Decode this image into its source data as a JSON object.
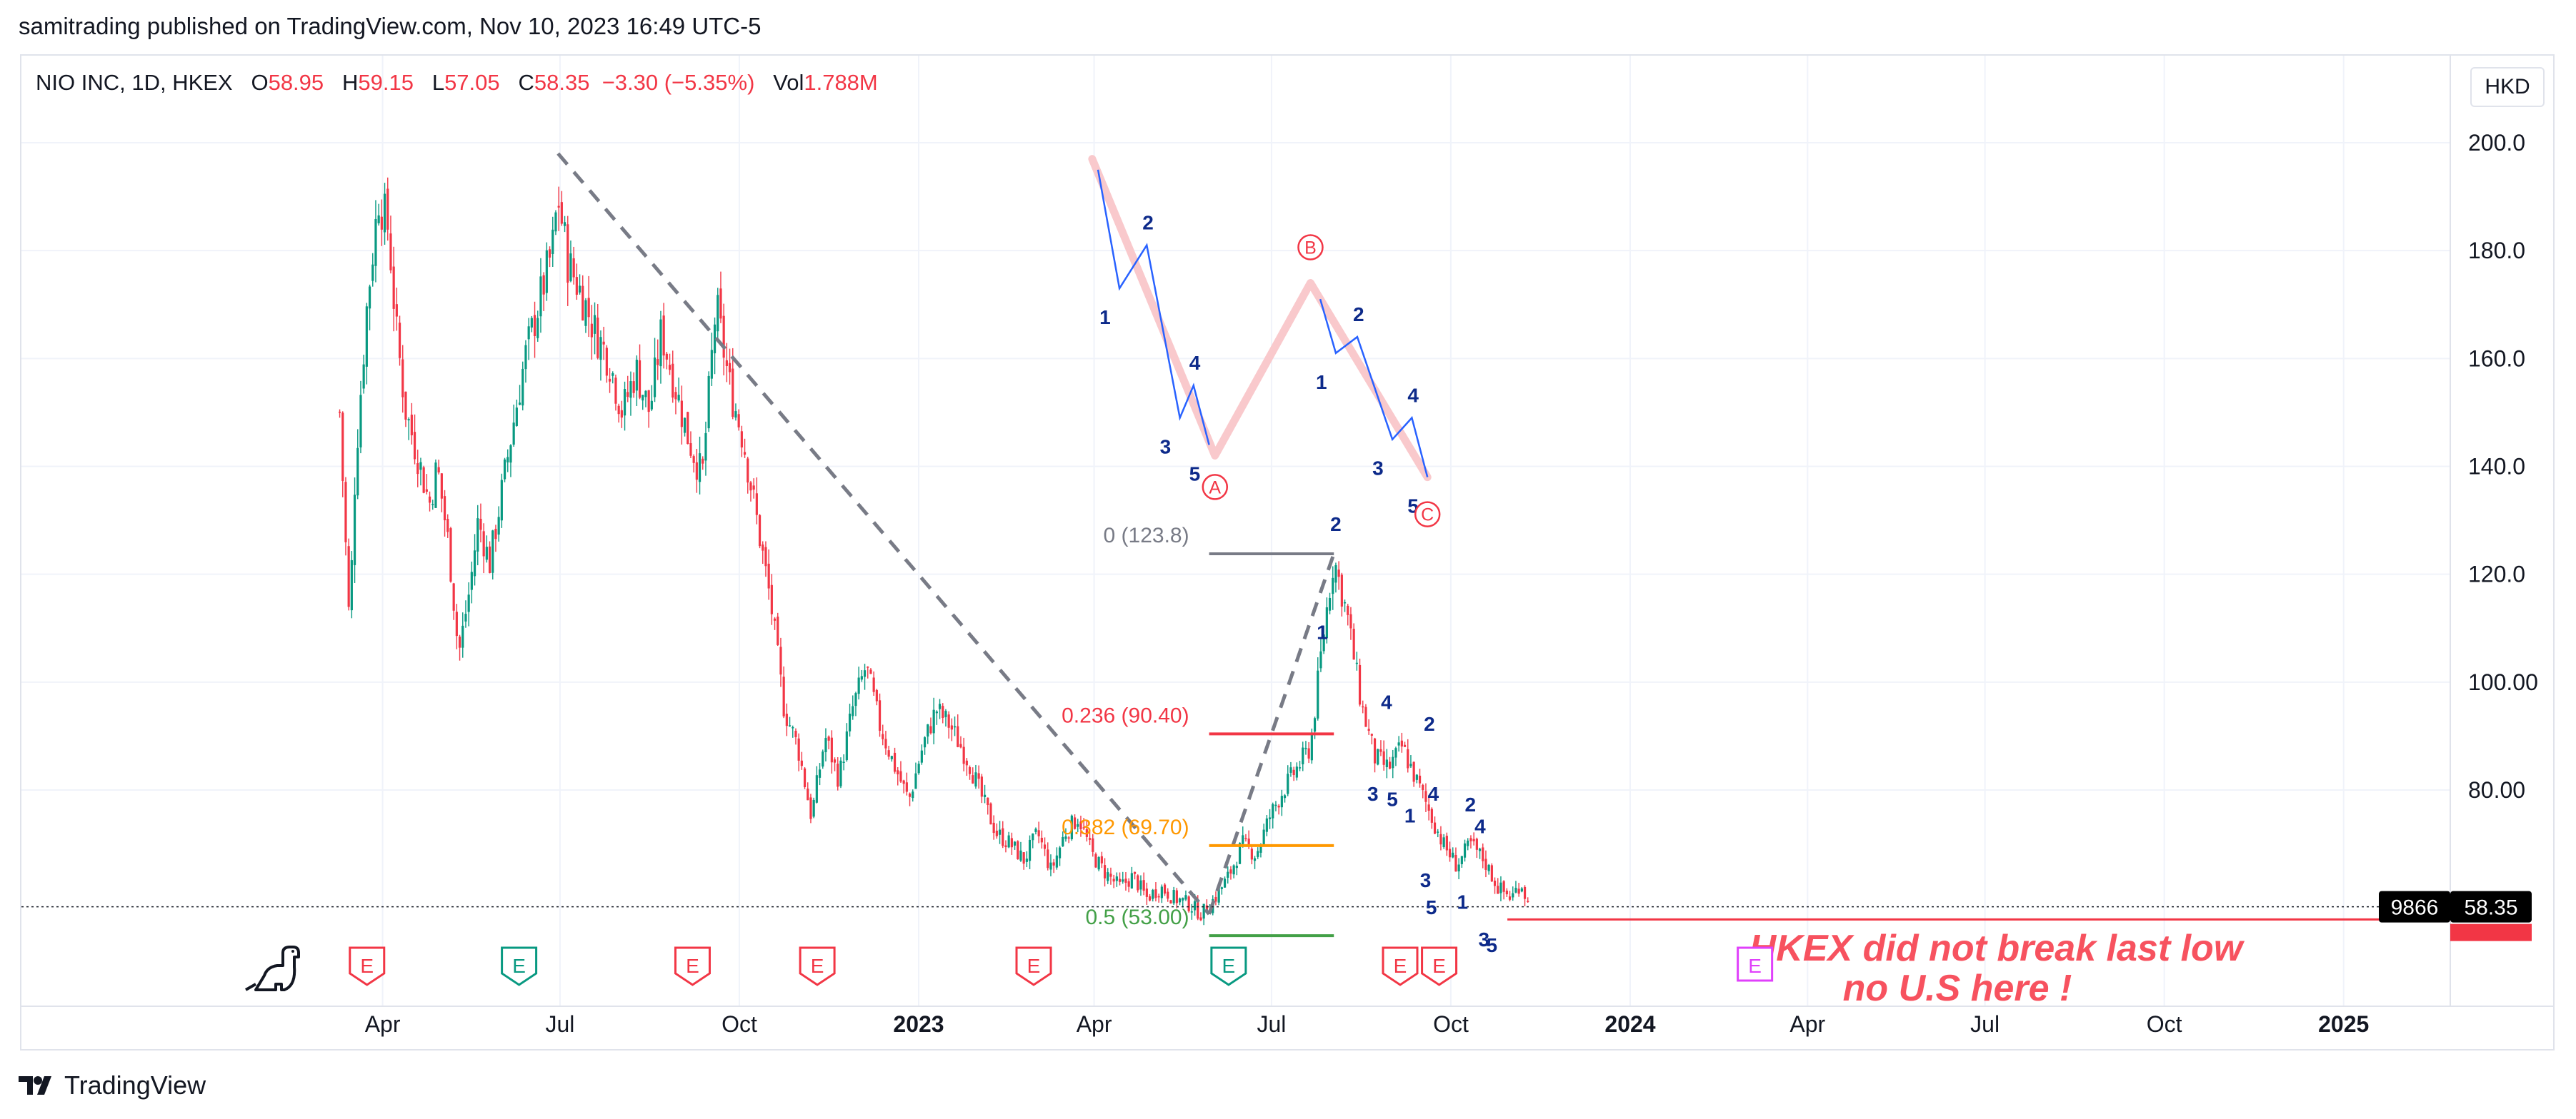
{
  "publish_line": "samitrading published on TradingView.com, Nov 10, 2023 16:49 UTC-5",
  "legend": {
    "symbol": "NIO INC, 1D, HKEX",
    "o_label": "O",
    "o_value": "58.95",
    "h_label": "H",
    "h_value": "59.15",
    "l_label": "L",
    "l_value": "57.05",
    "c_label": "C",
    "c_value": "58.35",
    "change": "−3.30 (−5.35%)",
    "vol_label": "Vol",
    "vol_value": "1.788M"
  },
  "currency": "HKD",
  "footer": {
    "brand": "TradingView"
  },
  "colors": {
    "up": "#089981",
    "down": "#f23645",
    "wave": "#2962ff",
    "wave_label": "#0d2a8a",
    "abc": "#f9c9cc",
    "trendline": "#787b86",
    "annotation": "#f7525f",
    "earnings_pink": "#e040fb"
  },
  "chart_data": {
    "type": "candlestick",
    "ylim": [
      42,
      215
    ],
    "y_ticks": [
      "200.0",
      "180.0",
      "160.0",
      "140.0",
      "120.0",
      "100.00",
      "80.00"
    ],
    "x_ticks": [
      "Apr",
      "Jul",
      "Oct",
      "2023",
      "Apr",
      "Jul",
      "Oct",
      "2024",
      "Apr",
      "Jul",
      "Oct",
      "2025"
    ],
    "last_price": "58.35",
    "price_tag_left": "9866",
    "price_path": [
      [
        "2022-03-10",
        150
      ],
      [
        "2022-03-15",
        110
      ],
      [
        "2022-03-18",
        140
      ],
      [
        "2022-03-24",
        170
      ],
      [
        "2022-03-30",
        190
      ],
      [
        "2022-04-04",
        184
      ],
      [
        "2022-04-08",
        165
      ],
      [
        "2022-04-13",
        150
      ],
      [
        "2022-04-19",
        142
      ],
      [
        "2022-04-25",
        133
      ],
      [
        "2022-04-29",
        140
      ],
      [
        "2022-05-05",
        125
      ],
      [
        "2022-05-10",
        105
      ],
      [
        "2022-05-16",
        118
      ],
      [
        "2022-05-20",
        130
      ],
      [
        "2022-05-26",
        122
      ],
      [
        "2022-06-01",
        135
      ],
      [
        "2022-06-08",
        150
      ],
      [
        "2022-06-13",
        160
      ],
      [
        "2022-06-20",
        170
      ],
      [
        "2022-06-27",
        180
      ],
      [
        "2022-06-30",
        190
      ],
      [
        "2022-07-05",
        178
      ],
      [
        "2022-07-12",
        172
      ],
      [
        "2022-07-19",
        165
      ],
      [
        "2022-07-26",
        160
      ],
      [
        "2022-08-02",
        150
      ],
      [
        "2022-08-09",
        158
      ],
      [
        "2022-08-16",
        150
      ],
      [
        "2022-08-22",
        165
      ],
      [
        "2022-08-29",
        155
      ],
      [
        "2022-09-05",
        145
      ],
      [
        "2022-09-12",
        138
      ],
      [
        "2022-09-19",
        170
      ],
      [
        "2022-09-26",
        155
      ],
      [
        "2022-10-03",
        145
      ],
      [
        "2022-10-10",
        130
      ],
      [
        "2022-10-17",
        115
      ],
      [
        "2022-10-24",
        95
      ],
      [
        "2022-10-31",
        88
      ],
      [
        "2022-11-07",
        75
      ],
      [
        "2022-11-14",
        90
      ],
      [
        "2022-11-21",
        82
      ],
      [
        "2022-11-28",
        95
      ],
      [
        "2022-12-05",
        103
      ],
      [
        "2022-12-12",
        92
      ],
      [
        "2022-12-19",
        85
      ],
      [
        "2022-12-27",
        78
      ],
      [
        "2023-01-03",
        88
      ],
      [
        "2023-01-10",
        95
      ],
      [
        "2023-01-17",
        92
      ],
      [
        "2023-01-27",
        85
      ],
      [
        "2023-02-03",
        78
      ],
      [
        "2023-02-10",
        72
      ],
      [
        "2023-02-17",
        70
      ],
      [
        "2023-02-24",
        67
      ],
      [
        "2023-03-03",
        72
      ],
      [
        "2023-03-10",
        65
      ],
      [
        "2023-03-17",
        72
      ],
      [
        "2023-03-24",
        75
      ],
      [
        "2023-03-31",
        68
      ],
      [
        "2023-04-06",
        65
      ],
      [
        "2023-04-14",
        62
      ],
      [
        "2023-04-21",
        64
      ],
      [
        "2023-04-28",
        60
      ],
      [
        "2023-05-05",
        62
      ],
      [
        "2023-05-12",
        60
      ],
      [
        "2023-05-19",
        59
      ],
      [
        "2023-05-26",
        57
      ],
      [
        "2023-06-02",
        60
      ],
      [
        "2023-06-09",
        64
      ],
      [
        "2023-06-16",
        70
      ],
      [
        "2023-06-23",
        68
      ],
      [
        "2023-06-30",
        75
      ],
      [
        "2023-07-07",
        80
      ],
      [
        "2023-07-14",
        84
      ],
      [
        "2023-07-21",
        88
      ],
      [
        "2023-07-28",
        110
      ],
      [
        "2023-08-02",
        123
      ],
      [
        "2023-08-09",
        112
      ],
      [
        "2023-08-16",
        96
      ],
      [
        "2023-08-23",
        86
      ],
      [
        "2023-08-30",
        84
      ],
      [
        "2023-09-06",
        88
      ],
      [
        "2023-09-13",
        82
      ],
      [
        "2023-09-20",
        76
      ],
      [
        "2023-09-27",
        70
      ],
      [
        "2023-10-04",
        66
      ],
      [
        "2023-10-11",
        70
      ],
      [
        "2023-10-18",
        67
      ],
      [
        "2023-10-25",
        62
      ],
      [
        "2023-11-01",
        60
      ],
      [
        "2023-11-06",
        63
      ],
      [
        "2023-11-10",
        58.35
      ]
    ],
    "trendline_dashed": {
      "from": [
        "2022-06-30",
        198
      ],
      "to": [
        "2023-05-30",
        57
      ]
    },
    "fib_measure_dashed": {
      "from": [
        "2023-05-30",
        57
      ],
      "to": [
        "2023-08-02",
        123.8
      ]
    },
    "fib_levels": [
      {
        "label": "0 (123.8)",
        "value": 123.8,
        "color": "#787b86"
      },
      {
        "label": "0.236 (90.40)",
        "value": 90.4,
        "color": "#f23645"
      },
      {
        "label": "0.382 (69.70)",
        "value": 69.7,
        "color": "#ff9800"
      },
      {
        "label": "0.5 (53.00)",
        "value": 53.0,
        "color": "#43a047"
      }
    ],
    "support_line": {
      "value": 56,
      "from": "2023-10-30"
    },
    "abc_pattern": {
      "points": [
        [
          "2023-03-31",
          197
        ],
        [
          "2023-06-02",
          142
        ],
        [
          "2023-07-21",
          174
        ],
        [
          "2023-09-19",
          138
        ]
      ],
      "labels": [
        "A",
        "B",
        "C"
      ]
    },
    "wave_a": {
      "points": [
        [
          "2023-04-03",
          195
        ],
        [
          "2023-04-14",
          173
        ],
        [
          "2023-04-28",
          181
        ],
        [
          "2023-05-15",
          149
        ],
        [
          "2023-05-22",
          155
        ],
        [
          "2023-05-30",
          144
        ]
      ],
      "labels": [
        "1",
        "2",
        "3",
        "4",
        "5"
      ]
    },
    "wave_c": {
      "points": [
        [
          "2023-07-26",
          171
        ],
        [
          "2023-08-03",
          161
        ],
        [
          "2023-08-14",
          164
        ],
        [
          "2023-09-01",
          145
        ],
        [
          "2023-09-11",
          149
        ],
        [
          "2023-09-19",
          138
        ]
      ],
      "labels": [
        "1",
        "2",
        "3",
        "4",
        "5"
      ]
    },
    "wave_labels_main": [
      {
        "t": "1",
        "x": "2023-07-27",
        "y": 108
      },
      {
        "t": "2",
        "x": "2023-08-03",
        "y": 128
      },
      {
        "t": "3",
        "x": "2023-08-22",
        "y": 78
      },
      {
        "t": "4",
        "x": "2023-08-29",
        "y": 95
      },
      {
        "t": "5",
        "x": "2023-09-01",
        "y": 77
      },
      {
        "t": "2",
        "x": "2023-09-20",
        "y": 91
      },
      {
        "t": "1",
        "x": "2023-09-10",
        "y": 74
      },
      {
        "t": "4",
        "x": "2023-09-22",
        "y": 78
      },
      {
        "t": "3",
        "x": "2023-09-18",
        "y": 62
      },
      {
        "t": "5",
        "x": "2023-09-21",
        "y": 57
      },
      {
        "t": "2",
        "x": "2023-10-11",
        "y": 76
      },
      {
        "t": "4",
        "x": "2023-10-16",
        "y": 72
      },
      {
        "t": "1",
        "x": "2023-10-07",
        "y": 58
      },
      {
        "t": "3",
        "x": "2023-10-18",
        "y": 51
      },
      {
        "t": "5",
        "x": "2023-10-22",
        "y": 50
      }
    ],
    "earnings_markers": [
      {
        "x": "2022-03-24",
        "kind": "red"
      },
      {
        "x": "2022-06-10",
        "kind": "green"
      },
      {
        "x": "2022-09-07",
        "kind": "red"
      },
      {
        "x": "2022-11-10",
        "kind": "red"
      },
      {
        "x": "2023-03-01",
        "kind": "red"
      },
      {
        "x": "2023-06-09",
        "kind": "green"
      },
      {
        "x": "2023-09-05",
        "kind": "red"
      },
      {
        "x": "2023-09-25",
        "kind": "red"
      },
      {
        "x": "2024-03-05",
        "kind": "pink"
      }
    ],
    "annotation": [
      "HKEX did not break last low",
      "no U.S here !"
    ]
  }
}
